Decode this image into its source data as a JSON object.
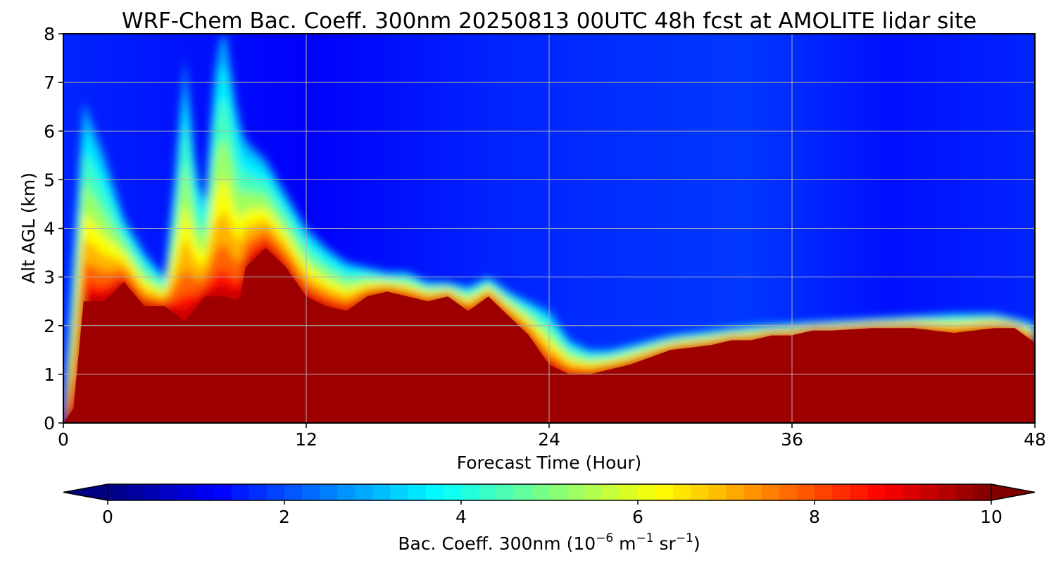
{
  "chart_data": {
    "type": "heatmap",
    "title": "WRF-Chem Bac. Coeff. 300nm  20250813 00UTC 48h fcst at AMOLITE lidar site",
    "xlabel": "Forecast Time (Hour)",
    "ylabel": "Alt AGL (km)",
    "xlim": [
      0,
      48
    ],
    "ylim": [
      0,
      8
    ],
    "x_ticks": [
      "0",
      "12",
      "24",
      "36",
      "48"
    ],
    "y_ticks": [
      "0",
      "1",
      "2",
      "3",
      "4",
      "5",
      "6",
      "7",
      "8"
    ],
    "grid": true,
    "colorbar": {
      "label_main": "Bac. Coeff. 300nm  (10",
      "label_exp1": "−6",
      "label_mid": " m",
      "label_exp2": "−1",
      "label_tail": " sr",
      "label_exp3": "−1",
      "label_end": ")",
      "range": [
        0,
        10
      ],
      "ticks": [
        "0",
        "2",
        "4",
        "6",
        "8",
        "10"
      ],
      "extend": "both",
      "colormap": "jet"
    },
    "saturated_layer_top_km": {
      "hours": [
        0,
        0.5,
        1,
        2,
        3,
        4,
        5,
        6,
        7,
        8,
        8.7,
        9,
        10,
        11,
        12,
        13,
        14,
        15,
        16,
        17,
        18,
        19,
        20,
        21,
        22,
        23,
        24,
        25,
        26,
        27,
        28,
        30,
        32,
        33,
        34,
        35,
        36,
        37,
        38,
        40,
        42,
        44,
        46,
        47,
        48
      ],
      "values": [
        0,
        0.3,
        2.5,
        2.5,
        2.9,
        2.4,
        2.4,
        2.1,
        2.6,
        2.6,
        2.5,
        3.2,
        3.6,
        3.2,
        2.6,
        2.4,
        2.3,
        2.6,
        2.7,
        2.6,
        2.5,
        2.6,
        2.3,
        2.6,
        2.2,
        1.8,
        1.2,
        1.0,
        1.0,
        1.1,
        1.2,
        1.5,
        1.6,
        1.7,
        1.7,
        1.8,
        1.8,
        1.9,
        1.9,
        1.95,
        1.95,
        1.85,
        1.95,
        1.95,
        1.65
      ]
    },
    "aerosol_plume_top_km": {
      "hours": [
        0,
        0.5,
        1,
        2,
        3,
        4,
        5,
        5.5,
        6,
        6.6,
        7,
        7.6,
        8,
        8.6,
        9,
        10,
        11,
        12,
        13,
        14,
        15,
        16,
        17,
        18,
        19,
        20,
        21,
        22,
        23,
        24,
        25,
        26,
        27,
        28,
        30,
        32,
        34,
        36,
        38,
        40,
        42,
        44,
        46,
        47,
        48
      ],
      "values": [
        0,
        3.5,
        6.6,
        5.5,
        4.2,
        3.5,
        3.0,
        5.0,
        7.5,
        5.0,
        4.6,
        7.8,
        8.0,
        6.3,
        5.8,
        5.4,
        4.7,
        4.0,
        3.6,
        3.3,
        3.2,
        3.1,
        3.1,
        2.9,
        2.9,
        2.8,
        3.0,
        2.7,
        2.5,
        2.3,
        1.7,
        1.5,
        1.5,
        1.6,
        1.8,
        1.9,
        2.0,
        2.05,
        2.1,
        2.15,
        2.2,
        2.25,
        2.25,
        2.15,
        2.05
      ]
    }
  }
}
